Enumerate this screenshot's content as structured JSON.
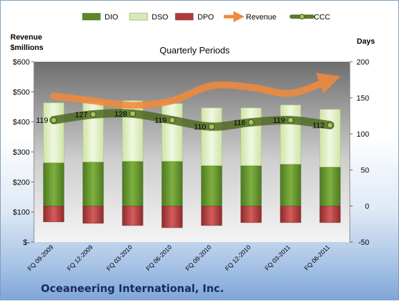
{
  "company": "Oceaneering International, Inc.",
  "legend": [
    {
      "name": "DIO",
      "color": "#5a8a28",
      "kind": "bar"
    },
    {
      "name": "DSO",
      "color": "#d8ebb4",
      "kind": "bar"
    },
    {
      "name": "DPO",
      "color": "#b33a3a",
      "kind": "bar"
    },
    {
      "name": "Revenue",
      "color": "#f08a3c",
      "kind": "arrow"
    },
    {
      "name": "CCC",
      "color": "#5f7a2f",
      "kind": "line"
    }
  ],
  "chart_data": {
    "type": "bar",
    "title": "Quarterly Periods",
    "ylabel_left": "Revenue\n$millions",
    "ylabel_right": "Days",
    "categories": [
      "FQ 09-2009",
      "FQ 12-2009",
      "FQ 03-2010",
      "FQ 06-2010",
      "FQ 09-2010",
      "FQ 12-2010",
      "FQ 03-2011",
      "FQ 06-2011"
    ],
    "left_axis": {
      "min": 0,
      "max": 600,
      "ticks": [
        0,
        100,
        200,
        300,
        400,
        500,
        600
      ],
      "tick_labels": [
        "$-",
        "$100",
        "$200",
        "$300",
        "$400",
        "$500",
        "$600"
      ]
    },
    "right_axis": {
      "min": -50,
      "max": 200,
      "ticks": [
        -50,
        0,
        50,
        100,
        150,
        200
      ],
      "tick_labels": [
        "-50",
        "0",
        "50",
        "100",
        "150",
        "200"
      ]
    },
    "series": [
      {
        "name": "DIO",
        "axis": "right",
        "values": [
          60,
          61,
          62,
          62,
          56,
          56,
          58,
          54
        ]
      },
      {
        "name": "DSO",
        "axis": "right",
        "values": [
          83,
          83,
          84,
          80,
          80,
          80,
          82,
          80
        ]
      },
      {
        "name": "DPO",
        "axis": "right",
        "values": [
          -22,
          -24,
          -27,
          -30,
          -27,
          -23,
          -23,
          -23
        ]
      },
      {
        "name": "Revenue",
        "axis": "left",
        "values": [
          486,
          470,
          455,
          470,
          520,
          515,
          495,
          540
        ]
      },
      {
        "name": "CCC",
        "axis": "right",
        "values": [
          119,
          127,
          128,
          119,
          110,
          116,
          119,
          112
        ]
      }
    ],
    "data_labels": [
      "119",
      "127",
      "128",
      "119",
      "110",
      "116",
      "119",
      "112"
    ],
    "grid": false,
    "legend_position": "top"
  }
}
